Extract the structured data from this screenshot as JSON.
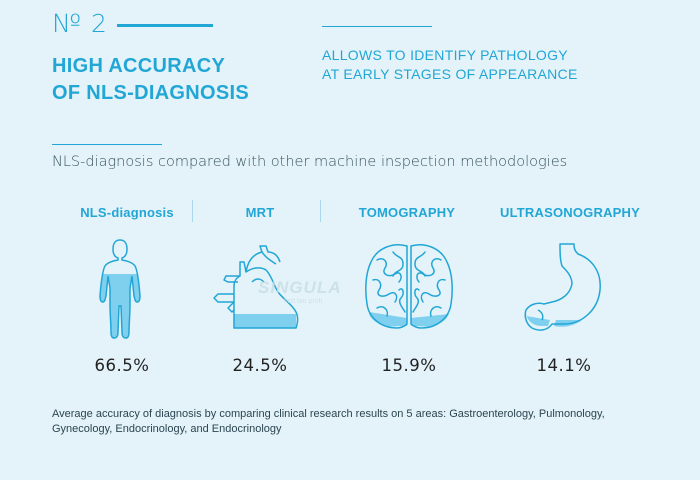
{
  "header": {
    "number": "№ 2",
    "title_line1": "HIGH ACCURACY",
    "title_line2": "OF NLS-DIAGNOSIS",
    "subtitle_line1": "ALLOWS TO IDENTIFY PATHOLOGY",
    "subtitle_line2": "AT EARLY STAGES OF APPEARANCE"
  },
  "intro": "NLS-diagnosis compared with other machine inspection methodologies",
  "watermark": {
    "brand": "SINGULA",
    "tagline": "first bio profi"
  },
  "methods": [
    {
      "label": "NLS-diagnosis",
      "percent": "66.5%",
      "value": 66.5,
      "icon": "human-body-icon"
    },
    {
      "label": "MRT",
      "percent": "24.5%",
      "value": 24.5,
      "icon": "heart-icon"
    },
    {
      "label": "TOMOGRAPHY",
      "percent": "15.9%",
      "value": 15.9,
      "icon": "brain-icon"
    },
    {
      "label": "ULTRASONOGRAPHY",
      "percent": "14.1%",
      "value": 14.1,
      "icon": "stomach-icon"
    }
  ],
  "footnote": "Average accuracy of diagnosis by comparing clinical research results on 5 areas: Gastroenterology, Pulmonology, Gynecology, Endocrinology, and Endocrinology",
  "colors": {
    "accent": "#22a6d6",
    "fill": "#7fd0ef",
    "background": "#e3f3f9"
  }
}
